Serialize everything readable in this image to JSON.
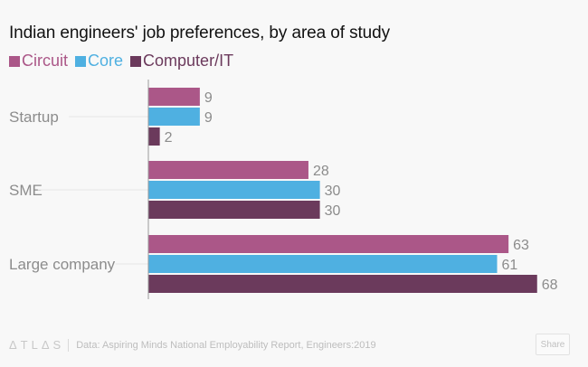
{
  "chart_data": {
    "type": "bar",
    "orientation": "horizontal",
    "title": "Indian engineers' job preferences, by area of study",
    "categories": [
      "Startup",
      "SME",
      "Large company"
    ],
    "series": [
      {
        "name": "Circuit",
        "color": "#ab5788",
        "values": [
          9,
          28,
          63
        ]
      },
      {
        "name": "Core",
        "color": "#4fb0e1",
        "values": [
          9,
          30,
          61
        ]
      },
      {
        "name": "Computer/IT",
        "color": "#6b3a5c",
        "values": [
          2,
          30,
          68
        ]
      }
    ],
    "xlabel": "",
    "ylabel": "",
    "xlim": [
      0,
      70
    ],
    "grid": false,
    "legend": "top-left",
    "data_labels": true
  },
  "footer": {
    "brand": "ΔTLΔS",
    "source": "Data: Aspiring Minds National Employability Report, Engineers:2019",
    "share_label": "Share"
  }
}
